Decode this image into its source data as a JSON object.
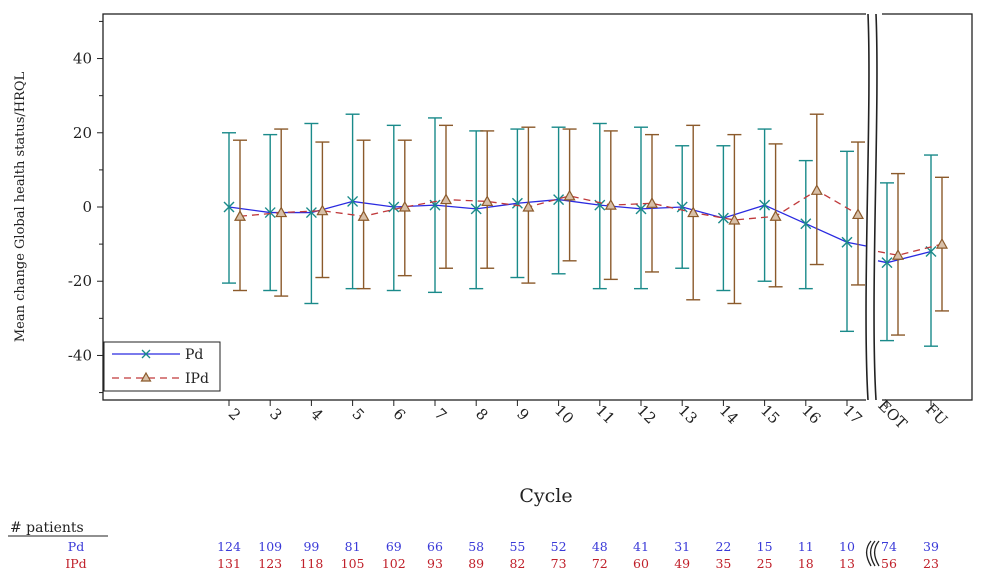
{
  "chart_data": {
    "type": "line",
    "xlabel": "Cycle",
    "ylabel": "Mean change Global health status/HRQL",
    "ylim": [
      -52,
      52
    ],
    "yticks": [
      -40,
      -20,
      0,
      20,
      40
    ],
    "categories": [
      "2",
      "3",
      "4",
      "5",
      "6",
      "7",
      "8",
      "9",
      "10",
      "11",
      "12",
      "13",
      "14",
      "15",
      "16",
      "17",
      "EOT",
      "FU"
    ],
    "axis_break_after": "17",
    "grid": false,
    "legend_position": "bottom-left",
    "series": [
      {
        "name": "Pd",
        "color": "#2a2ae0",
        "marker_color": "#1a8a8a",
        "marker": "x",
        "line_style": "solid",
        "values": [
          0,
          -1.5,
          -1.5,
          1.5,
          0,
          0.5,
          -0.5,
          1,
          2,
          0.5,
          -0.5,
          0,
          -3,
          0.5,
          -4.5,
          -9.5,
          -15,
          -12
        ],
        "error_low": [
          -20.5,
          -22.5,
          -26,
          -22,
          -22.5,
          -23,
          -22,
          -19,
          -18,
          -22,
          -22,
          -16.5,
          -22.5,
          -20,
          -22,
          -33.5,
          -36,
          -37.5
        ],
        "error_high": [
          20,
          19.5,
          22.5,
          25,
          22,
          24,
          20.5,
          21,
          21.5,
          22.5,
          21.5,
          16.5,
          16.5,
          21,
          12.5,
          15,
          6.5,
          14
        ],
        "connect_to_eot": -10.5
      },
      {
        "name": "IPd",
        "color": "#c0393b",
        "marker_color": "#8b5a2b",
        "marker": "triangle",
        "line_style": "dashed",
        "values": [
          -2.5,
          -1.5,
          -1,
          -2.5,
          0,
          2,
          1.5,
          0,
          3,
          0.5,
          1,
          -1.5,
          -3.5,
          -2.5,
          4.5,
          -2,
          -13,
          -10
        ],
        "error_low": [
          -22.5,
          -24,
          -19,
          -22,
          -18.5,
          -16.5,
          -16.5,
          -20.5,
          -14.5,
          -19.5,
          -17.5,
          -25,
          -26,
          -21.5,
          -15.5,
          -21,
          -34.5,
          -28
        ],
        "error_high": [
          18,
          21,
          17.5,
          18,
          18,
          22,
          20.5,
          21.5,
          21,
          20.5,
          19.5,
          22,
          19.5,
          17,
          25,
          17.5,
          9,
          8
        ],
        "connect_to_eot": -3
      }
    ]
  },
  "patients": {
    "header": "# patients",
    "rows": [
      {
        "label": "Pd",
        "color": "#3a3ad8",
        "counts": [
          "124",
          "109",
          "99",
          "81",
          "69",
          "66",
          "58",
          "55",
          "52",
          "48",
          "41",
          "31",
          "22",
          "15",
          "11",
          "10",
          "74",
          "39"
        ]
      },
      {
        "label": "IPd",
        "color": "#c0202a",
        "counts": [
          "131",
          "123",
          "118",
          "105",
          "102",
          "93",
          "89",
          "82",
          "73",
          "72",
          "60",
          "49",
          "35",
          "25",
          "18",
          "13",
          "56",
          "23"
        ]
      }
    ]
  }
}
